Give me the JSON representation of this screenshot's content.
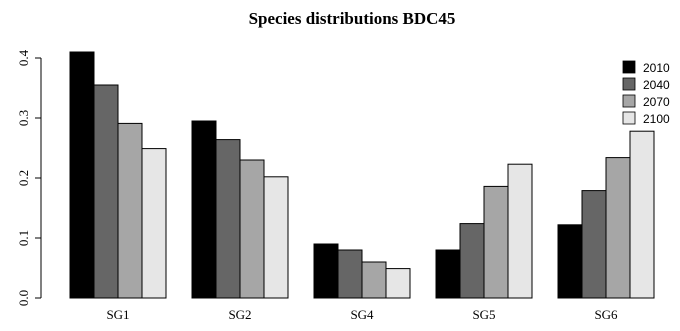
{
  "chart_data": {
    "type": "bar",
    "title": "Species distributions BDC45",
    "xlabel": "",
    "ylabel": "",
    "categories": [
      "SG1",
      "SG2",
      "SG4",
      "SG5",
      "SG6"
    ],
    "series": [
      {
        "name": "2010",
        "color": "#000000",
        "values": [
          0.41,
          0.295,
          0.09,
          0.08,
          0.122
        ]
      },
      {
        "name": "2040",
        "color": "#666666",
        "values": [
          0.355,
          0.264,
          0.08,
          0.124,
          0.179
        ]
      },
      {
        "name": "2070",
        "color": "#a6a6a6",
        "values": [
          0.291,
          0.23,
          0.06,
          0.186,
          0.234
        ]
      },
      {
        "name": "2100",
        "color": "#e6e6e6",
        "values": [
          0.249,
          0.202,
          0.049,
          0.223,
          0.278
        ]
      }
    ],
    "ylim": [
      0,
      0.4
    ],
    "yticks": [
      "0.0",
      "0.1",
      "0.2",
      "0.3",
      "0.4"
    ],
    "grid": false,
    "legend": "top-right"
  }
}
